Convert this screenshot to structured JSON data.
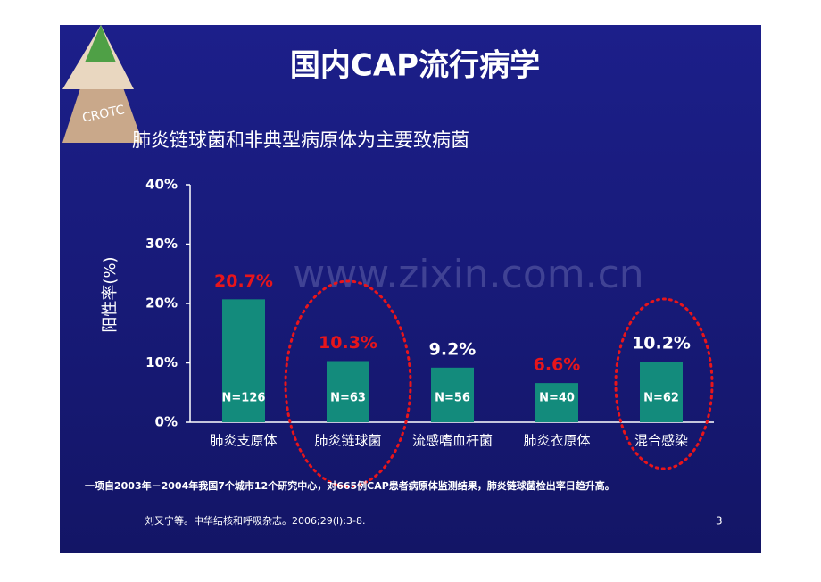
{
  "slide": {
    "logo": "CROTC",
    "subtitle": "肺炎链球菌和非典型病原体为主要致病菌",
    "watermark": "www.zixin.com.cn",
    "footnote": "一项自2003年－2004年我国7个城市12个研究中心，对665例CAP患者病原体监测结果，肺炎链球菌检出率日趋升高。",
    "citation": "刘又宁等。中华结核和呼吸杂志。2006;29(l):3-8.",
    "page_number": "3"
  },
  "chart_data": {
    "type": "bar",
    "title": "国内CAP流行病学",
    "y_label": "阳性率(%)",
    "categories": [
      "肺炎支原体",
      "肺炎链球菌",
      "流感嗜血杆菌",
      "肺炎衣原体",
      "混合感染"
    ],
    "values": [
      20.7,
      10.3,
      9.2,
      6.6,
      10.2
    ],
    "value_labels": [
      "20.7%",
      "10.3%",
      "9.2%",
      "6.6%",
      "10.2%"
    ],
    "value_label_colors": [
      "#e8151b",
      "#e8151b",
      "#ffffff",
      "#e8151b",
      "#ffffff"
    ],
    "n_labels": [
      "N=126",
      "N=63",
      "N=56",
      "N=40",
      "N=62"
    ],
    "color": "#138b7c",
    "ylim": [
      0,
      40
    ],
    "yticks": [
      {
        "value": 0,
        "label": "0%"
      },
      {
        "value": 10,
        "label": "10%"
      },
      {
        "value": 20,
        "label": "20%"
      },
      {
        "value": 30,
        "label": "30%"
      },
      {
        "value": 40,
        "label": "40%"
      }
    ]
  }
}
